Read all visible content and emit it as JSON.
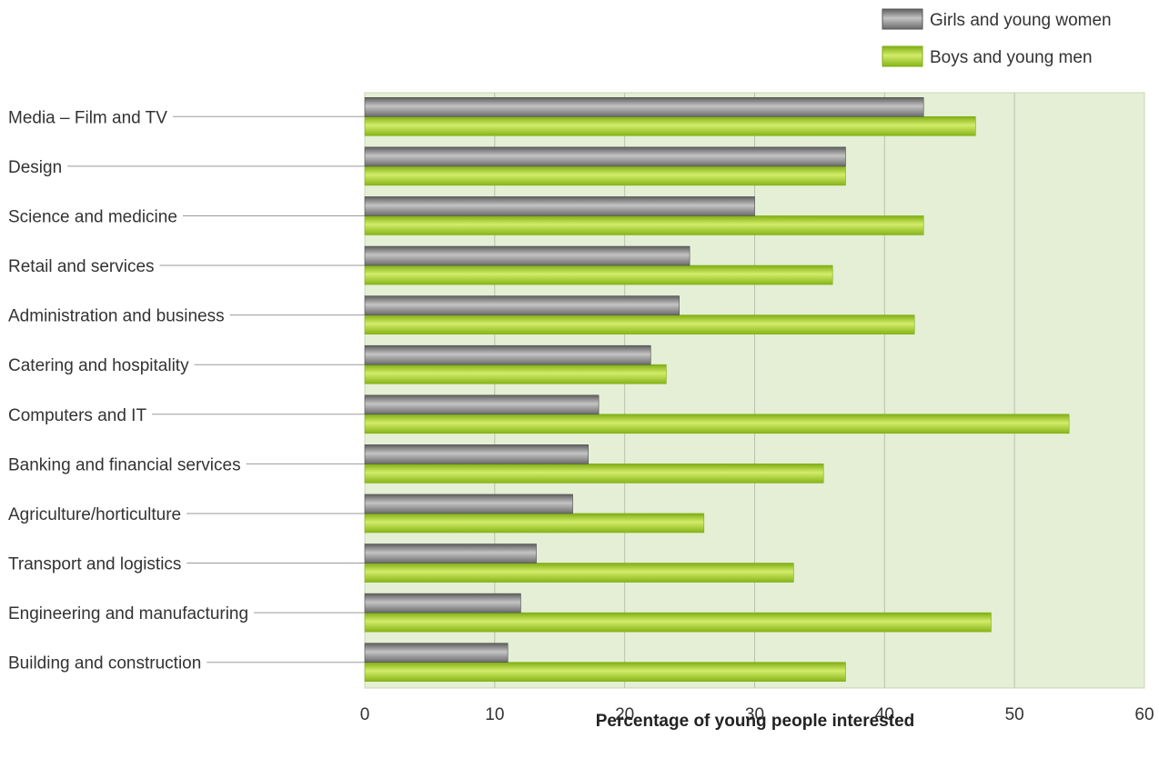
{
  "chart_data": {
    "type": "bar",
    "orientation": "horizontal",
    "categories": [
      "Media – Film and TV",
      "Design",
      "Science and medicine",
      "Retail and services",
      "Administration and business",
      "Catering and hospitality",
      "Computers and IT",
      "Banking and financial services",
      "Agriculture/horticulture",
      "Transport and logistics",
      "Engineering and manufacturing",
      "Building and construction"
    ],
    "series": [
      {
        "name": "Girls and young women",
        "color": "#8a8a8a",
        "values": [
          43,
          37,
          30,
          25,
          24.2,
          22,
          18,
          17.2,
          16,
          13.2,
          12,
          11
        ]
      },
      {
        "name": "Boys and young men",
        "color": "#a6cf2c",
        "values": [
          47,
          37,
          43,
          36,
          42.3,
          23.2,
          54.2,
          35.3,
          26.1,
          33,
          48.2,
          37
        ]
      }
    ],
    "xlabel": "Percentage of young people interested",
    "xlim": [
      0,
      60
    ],
    "xticks": [
      0,
      10,
      20,
      30,
      40,
      50,
      60
    ],
    "grid": true,
    "legend_position": "top-right",
    "plot_background": "#e4efd5"
  }
}
